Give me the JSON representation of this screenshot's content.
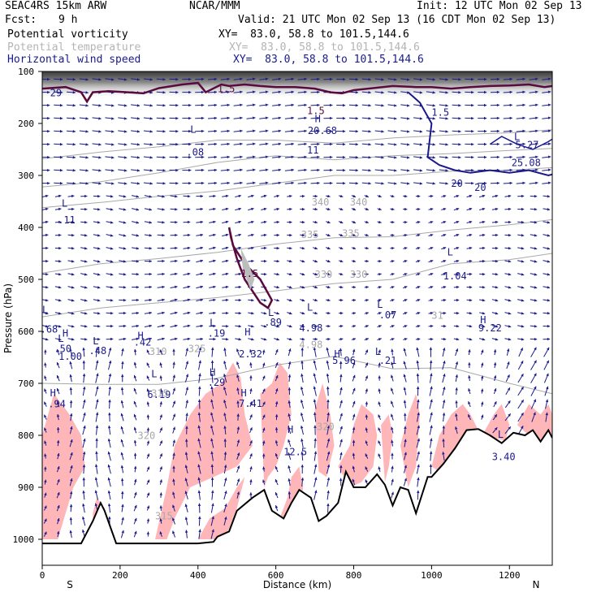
{
  "header": {
    "model": "SEAC4RS 15km ARW",
    "org": "NCAR/MMM",
    "init": "Init: 12 UTC Mon 02 Sep 13",
    "fcst_label": "Fcst:",
    "fcst_value": "9 h",
    "valid": "Valid: 21 UTC Mon 02 Sep 13 (16 CDT Mon 02 Sep 13)",
    "fields": [
      {
        "name": "Potential vorticity",
        "xy": "XY=  83.0, 58.8 to 101.5,144.6",
        "color": "#000000"
      },
      {
        "name": "Potential temperature",
        "xy": "XY=  83.0, 58.8 to 101.5,144.6",
        "color": "#b4b4b4"
      },
      {
        "name": "Horizontal wind speed",
        "xy": "XY=  83.0, 58.8 to 101.5,144.6",
        "color": "#1a1a8c"
      }
    ]
  },
  "colors": {
    "terrain": "#000000",
    "pv_contour": "#5a0a3c",
    "pink_fill": "#ffb6b9",
    "theta": "#a8a8a8",
    "wind": "#1a1a8c"
  },
  "chart_data": {
    "type": "cross-section",
    "xlabel": "Distance (km)",
    "ylabel": "Pressure (hPa)",
    "x_ticks": [
      0,
      200,
      400,
      600,
      800,
      1000,
      1200
    ],
    "y_ticks": [
      100,
      200,
      300,
      400,
      500,
      600,
      700,
      800,
      900,
      1000
    ],
    "xlim": [
      0,
      1310
    ],
    "ylim": [
      100,
      1050
    ],
    "end_labels": {
      "left": "S",
      "right": "N"
    },
    "theta_contours": [
      {
        "label": "340",
        "p": [
          268,
          255,
          245,
          232,
          232,
          238,
          228,
          222,
          218,
          212
        ]
      },
      {
        "label": "335",
        "p": [
          322,
          312,
          295,
          275,
          262,
          270,
          262,
          258,
          252,
          248
        ]
      },
      {
        "label": "330",
        "p": [
          362,
          352,
          340,
          330,
          315,
          300,
          300,
          292,
          290,
          285
        ]
      },
      {
        "label": "325",
        "p": [
          488,
          470,
          460,
          448,
          432,
          420,
          418,
          405,
          395,
          385
        ]
      },
      {
        "label": "320",
        "p": [
          572,
          555,
          545,
          535,
          522,
          508,
          500,
          470,
          462,
          450
        ]
      },
      {
        "label": "315",
        "p": [
          700,
          702,
          702,
          690,
          665,
          648,
          672,
          670,
          700,
          720
        ]
      }
    ],
    "theta_x": [
      0,
      150,
      300,
      450,
      600,
      750,
      900,
      1050,
      1200,
      1310
    ],
    "terrain": {
      "x": [
        0,
        100,
        130,
        150,
        160,
        190,
        230,
        280,
        300,
        350,
        400,
        440,
        450,
        480,
        500,
        540,
        570,
        590,
        620,
        640,
        660,
        690,
        710,
        730,
        760,
        780,
        800,
        830,
        860,
        880,
        900,
        920,
        940,
        960,
        990,
        1000,
        1030,
        1060,
        1090,
        1120,
        1150,
        1180,
        1210,
        1240,
        1260,
        1280,
        1300,
        1310
      ],
      "p": [
        1008,
        1008,
        965,
        930,
        945,
        1008,
        1008,
        1008,
        1008,
        1008,
        1008,
        1005,
        995,
        985,
        945,
        920,
        905,
        945,
        960,
        930,
        905,
        920,
        965,
        955,
        930,
        870,
        900,
        900,
        875,
        895,
        935,
        900,
        905,
        950,
        880,
        880,
        855,
        825,
        790,
        788,
        800,
        815,
        795,
        800,
        790,
        812,
        790,
        805
      ]
    },
    "pv_15_contour": [
      {
        "x": [
          0,
          60,
          100,
          115,
          130,
          170,
          220,
          260,
          300,
          360,
          400,
          420,
          460,
          480,
          520,
          560,
          600,
          650,
          700,
          740,
          770,
          800,
          850,
          900,
          960,
          1000,
          1050,
          1100,
          1150,
          1200,
          1250,
          1290,
          1310
        ],
        "p": [
          133,
          130,
          140,
          158,
          140,
          138,
          140,
          142,
          132,
          125,
          122,
          140,
          125,
          128,
          125,
          128,
          130,
          130,
          133,
          140,
          142,
          136,
          132,
          128,
          130,
          130,
          133,
          130,
          128,
          127,
          125,
          130,
          128
        ]
      }
    ],
    "pv_blob": {
      "x": [
        480,
        490,
        520,
        560,
        590,
        580,
        560,
        520,
        500,
        485,
        480
      ],
      "p": [
        400,
        435,
        470,
        500,
        540,
        555,
        545,
        500,
        460,
        420,
        400
      ]
    },
    "wind_20_contour": {
      "x": [
        940,
        970,
        1000,
        990,
        1020,
        1060,
        1100,
        1150,
        1200,
        1250,
        1300,
        1310
      ],
      "p": [
        140,
        160,
        200,
        265,
        280,
        290,
        295,
        290,
        295,
        290,
        300,
        298
      ]
    },
    "wind_15_contour": {
      "x": [
        1150,
        1180,
        1220,
        1260,
        1300,
        1310
      ],
      "p": [
        240,
        225,
        240,
        250,
        235,
        230
      ]
    },
    "labels": [
      {
        "text": "29",
        "x": 20,
        "p": 148,
        "color": "wind"
      },
      {
        "text": "1.5",
        "x": 450,
        "p": 140,
        "color": "pv"
      },
      {
        "text": "1.5",
        "x": 680,
        "p": 182,
        "color": "pv"
      },
      {
        "text": "H",
        "x": 700,
        "p": 198,
        "color": "wind"
      },
      {
        "text": "20.68",
        "x": 682,
        "p": 220,
        "color": "wind"
      },
      {
        "text": "11",
        "x": 680,
        "p": 258,
        "color": "wind"
      },
      {
        "text": "L",
        "x": 380,
        "p": 218,
        "color": "wind"
      },
      {
        "text": ".08",
        "x": 370,
        "p": 262,
        "color": "wind"
      },
      {
        "text": "1.5",
        "x": 1000,
        "p": 185,
        "color": "wind"
      },
      {
        "text": "L",
        "x": 1212,
        "p": 232,
        "color": "wind"
      },
      {
        "text": "5.27",
        "x": 1215,
        "p": 248,
        "color": "wind"
      },
      {
        "text": "25.08",
        "x": 1205,
        "p": 282,
        "color": "wind"
      },
      {
        "text": "20",
        "x": 1050,
        "p": 322,
        "color": "wind"
      },
      {
        "text": "20",
        "x": 1110,
        "p": 330,
        "color": "wind"
      },
      {
        "text": "L",
        "x": 50,
        "p": 360,
        "color": "wind"
      },
      {
        "text": ".11",
        "x": 40,
        "p": 392,
        "color": "wind"
      },
      {
        "text": "340",
        "x": 692,
        "p": 358,
        "color": "theta"
      },
      {
        "text": "340",
        "x": 790,
        "p": 358,
        "color": "theta"
      },
      {
        "text": "335",
        "x": 665,
        "p": 420,
        "color": "theta"
      },
      {
        "text": "335",
        "x": 770,
        "p": 418,
        "color": "theta"
      },
      {
        "text": "330",
        "x": 700,
        "p": 497,
        "color": "theta"
      },
      {
        "text": "330",
        "x": 790,
        "p": 497,
        "color": "theta"
      },
      {
        "text": "L",
        "x": 1040,
        "p": 454,
        "color": "wind"
      },
      {
        "text": "1.04",
        "x": 1030,
        "p": 500,
        "color": "wind"
      },
      {
        "text": "1.5",
        "x": 510,
        "p": 495,
        "color": "pv"
      },
      {
        "text": "L",
        "x": 680,
        "p": 560,
        "color": "wind"
      },
      {
        "text": "4.98",
        "x": 660,
        "p": 600,
        "color": "wind"
      },
      {
        "text": "4.98",
        "x": 660,
        "p": 632,
        "color": "theta"
      },
      {
        "text": "L",
        "x": 0,
        "p": 565,
        "color": "wind"
      },
      {
        "text": ".68",
        "x": -5,
        "p": 602,
        "color": "wind"
      },
      {
        "text": "H",
        "x": 52,
        "p": 610,
        "color": "wind"
      },
      {
        "text": "1.00",
        "x": 42,
        "p": 655,
        "color": "wind"
      },
      {
        "text": "H",
        "x": 520,
        "p": 608,
        "color": "wind"
      },
      {
        "text": "2.32",
        "x": 505,
        "p": 650,
        "color": "wind"
      },
      {
        "text": "325",
        "x": 375,
        "p": 640,
        "color": "theta"
      },
      {
        "text": "L",
        "x": 280,
        "p": 688,
        "color": "wind"
      },
      {
        "text": "6.19",
        "x": 270,
        "p": 728,
        "color": "wind"
      },
      {
        "text": "320",
        "x": 245,
        "p": 807,
        "color": "theta"
      },
      {
        "text": "H",
        "x": 630,
        "p": 795,
        "color": "wind"
      },
      {
        "text": "12.5",
        "x": 620,
        "p": 838,
        "color": "wind"
      },
      {
        "text": "320",
        "x": 705,
        "p": 790,
        "color": "theta"
      },
      {
        "text": "L",
        "x": 1170,
        "p": 805,
        "color": "wind"
      },
      {
        "text": "3.40",
        "x": 1155,
        "p": 848,
        "color": "wind"
      },
      {
        "text": "315",
        "x": 290,
        "p": 962,
        "color": "theta"
      },
      {
        "text": "L",
        "x": 580,
        "p": 1040,
        "color": "wind"
      },
      {
        "text": ".89",
        "x": 570,
        "p": 1078,
        "color": "wind"
      },
      {
        "text": "L",
        "x": 430,
        "p": 1080,
        "color": "wind"
      },
      {
        "text": ".19",
        "x": 425,
        "p": 1120,
        "color": "wind"
      },
      {
        "text": "L",
        "x": 860,
        "p": 1010,
        "color": "wind"
      },
      {
        "text": ".07",
        "x": 865,
        "p": 1050,
        "color": "wind"
      },
      {
        "text": "31",
        "x": 1000,
        "p": 1052,
        "color": "theta"
      },
      {
        "text": "H",
        "x": 1125,
        "p": 1068,
        "color": "wind"
      },
      {
        "text": "9.22",
        "x": 1120,
        "p": 1100,
        "color": "wind"
      },
      {
        "text": "L",
        "x": 40,
        "p": 1140,
        "color": "wind"
      },
      {
        "text": ".50",
        "x": 30,
        "p": 1180,
        "color": "wind"
      },
      {
        "text": "L",
        "x": 130,
        "p": 1150,
        "color": "wind"
      },
      {
        "text": ".48",
        "x": 120,
        "p": 1188,
        "color": "wind"
      },
      {
        "text": "H",
        "x": 245,
        "p": 1130,
        "color": "wind"
      },
      {
        "text": ".42",
        "x": 235,
        "p": 1155,
        "color": "wind"
      },
      {
        "text": "310",
        "x": 275,
        "p": 1190,
        "color": "theta"
      },
      {
        "text": "H",
        "x": 750,
        "p": 1200,
        "color": "wind"
      },
      {
        "text": "5.96",
        "x": 745,
        "p": 1225,
        "color": "wind"
      },
      {
        "text": "L",
        "x": 855,
        "p": 1190,
        "color": "wind"
      },
      {
        "text": ".21",
        "x": 865,
        "p": 1225,
        "color": "wind"
      },
      {
        "text": "H",
        "x": 430,
        "p": 1270,
        "color": "wind"
      },
      {
        "text": ".29",
        "x": 425,
        "p": 1310,
        "color": "wind"
      },
      {
        "text": "315",
        "x": 280,
        "p": 1352,
        "color": "theta"
      },
      {
        "text": "H",
        "x": 20,
        "p": 1350,
        "color": "wind"
      },
      {
        "text": ".94",
        "x": 15,
        "p": 1392,
        "color": "wind"
      },
      {
        "text": "H",
        "x": 510,
        "p": 1350,
        "color": "wind"
      },
      {
        "text": "7.41",
        "x": 505,
        "p": 1390,
        "color": "wind"
      }
    ]
  }
}
